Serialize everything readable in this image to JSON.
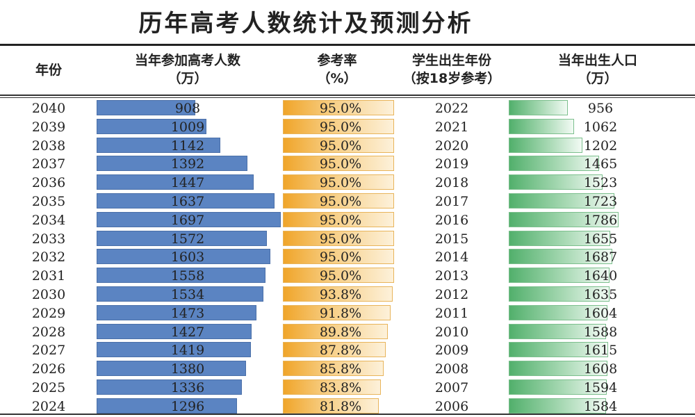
{
  "chart_data": {
    "type": "table",
    "title": "历年高考人数统计及预测分析",
    "headers": [
      {
        "line1": "年份",
        "line2": ""
      },
      {
        "line1": "当年参加高考人数",
        "line2": "（万）"
      },
      {
        "line1": "参考率",
        "line2": "（%）"
      },
      {
        "line1": "学生出生年份",
        "line2": "（按18岁参考）"
      },
      {
        "line1": "当年出生人口",
        "line2": "（万）"
      }
    ],
    "colors": {
      "examinees_bar": "#5b84c2",
      "rate_bar": "#f0a52a",
      "births_bar": "#52b06c"
    },
    "rows": [
      {
        "year": "2040",
        "examinees": 908,
        "rate": "95.0%",
        "birth_year": "2022",
        "births": 956
      },
      {
        "year": "2039",
        "examinees": 1009,
        "rate": "95.0%",
        "birth_year": "2021",
        "births": 1062
      },
      {
        "year": "2038",
        "examinees": 1142,
        "rate": "95.0%",
        "birth_year": "2020",
        "births": 1202
      },
      {
        "year": "2037",
        "examinees": 1392,
        "rate": "95.0%",
        "birth_year": "2019",
        "births": 1465
      },
      {
        "year": "2036",
        "examinees": 1447,
        "rate": "95.0%",
        "birth_year": "2018",
        "births": 1523
      },
      {
        "year": "2035",
        "examinees": 1637,
        "rate": "95.0%",
        "birth_year": "2017",
        "births": 1723
      },
      {
        "year": "2034",
        "examinees": 1697,
        "rate": "95.0%",
        "birth_year": "2016",
        "births": 1786
      },
      {
        "year": "2033",
        "examinees": 1572,
        "rate": "95.0%",
        "birth_year": "2015",
        "births": 1655
      },
      {
        "year": "2032",
        "examinees": 1603,
        "rate": "95.0%",
        "birth_year": "2014",
        "births": 1687
      },
      {
        "year": "2031",
        "examinees": 1558,
        "rate": "95.0%",
        "birth_year": "2013",
        "births": 1640
      },
      {
        "year": "2030",
        "examinees": 1534,
        "rate": "93.8%",
        "birth_year": "2012",
        "births": 1635
      },
      {
        "year": "2029",
        "examinees": 1473,
        "rate": "91.8%",
        "birth_year": "2011",
        "births": 1604
      },
      {
        "year": "2028",
        "examinees": 1427,
        "rate": "89.8%",
        "birth_year": "2010",
        "births": 1588
      },
      {
        "year": "2027",
        "examinees": 1419,
        "rate": "87.8%",
        "birth_year": "2009",
        "births": 1615
      },
      {
        "year": "2026",
        "examinees": 1380,
        "rate": "85.8%",
        "birth_year": "2008",
        "births": 1608
      },
      {
        "year": "2025",
        "examinees": 1336,
        "rate": "83.8%",
        "birth_year": "2007",
        "births": 1594
      },
      {
        "year": "2024",
        "examinees": 1296,
        "rate": "81.8%",
        "birth_year": "2006",
        "births": 1584
      }
    ]
  }
}
